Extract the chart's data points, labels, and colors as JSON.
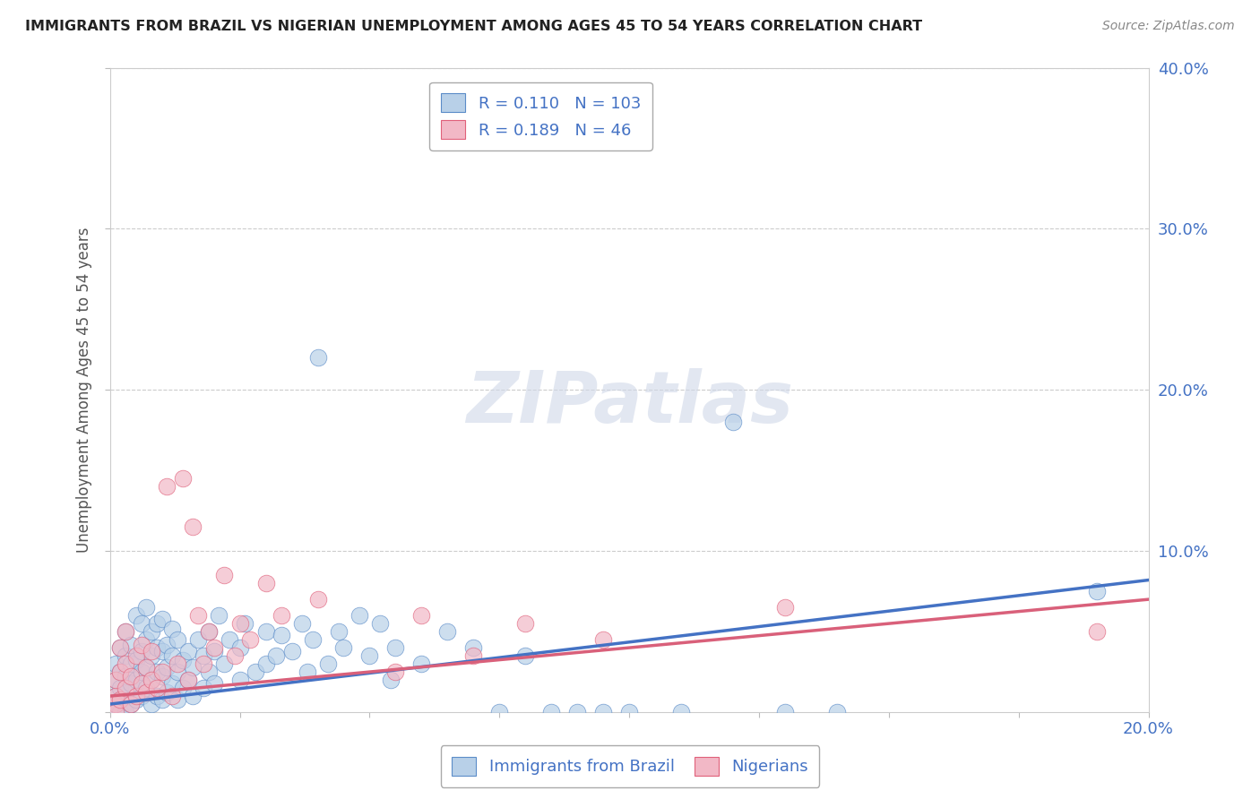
{
  "title": "IMMIGRANTS FROM BRAZIL VS NIGERIAN UNEMPLOYMENT AMONG AGES 45 TO 54 YEARS CORRELATION CHART",
  "source": "Source: ZipAtlas.com",
  "ylabel": "Unemployment Among Ages 45 to 54 years",
  "xlim": [
    0.0,
    0.2
  ],
  "ylim": [
    0.0,
    0.4
  ],
  "xticks": [
    0.0,
    0.025,
    0.05,
    0.075,
    0.1,
    0.125,
    0.15,
    0.175,
    0.2
  ],
  "xticklabels": [
    "0.0%",
    "",
    "",
    "",
    "",
    "",
    "",
    "",
    "20.0%"
  ],
  "yticks": [
    0.0,
    0.1,
    0.2,
    0.3,
    0.4
  ],
  "yticklabels": [
    "",
    "10.0%",
    "20.0%",
    "30.0%",
    "40.0%"
  ],
  "brazil_color": "#b8d0e8",
  "nigeria_color": "#f2b8c6",
  "brazil_edge_color": "#5b8cc8",
  "nigeria_edge_color": "#e0607a",
  "brazil_line_color": "#4472c4",
  "nigeria_line_color": "#d9607a",
  "brazil_R": 0.11,
  "brazil_N": 103,
  "nigeria_R": 0.189,
  "nigeria_N": 46,
  "legend_label_brazil": "Immigrants from Brazil",
  "legend_label_nigeria": "Nigerians",
  "watermark": "ZIPatlas",
  "background_color": "#ffffff",
  "grid_color": "#cccccc",
  "title_color": "#222222",
  "axis_label_color": "#555555",
  "tick_color": "#4472c4",
  "brazil_points": [
    [
      0.001,
      0.005
    ],
    [
      0.001,
      0.01
    ],
    [
      0.001,
      0.02
    ],
    [
      0.001,
      0.03
    ],
    [
      0.001,
      0.0
    ],
    [
      0.001,
      0.003
    ],
    [
      0.002,
      0.008
    ],
    [
      0.002,
      0.015
    ],
    [
      0.002,
      0.025
    ],
    [
      0.002,
      0.04
    ],
    [
      0.002,
      0.0
    ],
    [
      0.003,
      0.012
    ],
    [
      0.003,
      0.022
    ],
    [
      0.003,
      0.035
    ],
    [
      0.003,
      0.0
    ],
    [
      0.003,
      0.05
    ],
    [
      0.004,
      0.005
    ],
    [
      0.004,
      0.018
    ],
    [
      0.004,
      0.03
    ],
    [
      0.004,
      0.042
    ],
    [
      0.005,
      0.008
    ],
    [
      0.005,
      0.02
    ],
    [
      0.005,
      0.032
    ],
    [
      0.005,
      0.06
    ],
    [
      0.006,
      0.01
    ],
    [
      0.006,
      0.025
    ],
    [
      0.006,
      0.038
    ],
    [
      0.006,
      0.055
    ],
    [
      0.007,
      0.015
    ],
    [
      0.007,
      0.028
    ],
    [
      0.007,
      0.045
    ],
    [
      0.007,
      0.065
    ],
    [
      0.008,
      0.005
    ],
    [
      0.008,
      0.02
    ],
    [
      0.008,
      0.035
    ],
    [
      0.008,
      0.05
    ],
    [
      0.009,
      0.01
    ],
    [
      0.009,
      0.025
    ],
    [
      0.009,
      0.04
    ],
    [
      0.009,
      0.055
    ],
    [
      0.01,
      0.008
    ],
    [
      0.01,
      0.022
    ],
    [
      0.01,
      0.038
    ],
    [
      0.01,
      0.058
    ],
    [
      0.011,
      0.012
    ],
    [
      0.011,
      0.028
    ],
    [
      0.011,
      0.042
    ],
    [
      0.012,
      0.018
    ],
    [
      0.012,
      0.035
    ],
    [
      0.012,
      0.052
    ],
    [
      0.013,
      0.008
    ],
    [
      0.013,
      0.025
    ],
    [
      0.013,
      0.045
    ],
    [
      0.014,
      0.015
    ],
    [
      0.014,
      0.032
    ],
    [
      0.015,
      0.02
    ],
    [
      0.015,
      0.038
    ],
    [
      0.016,
      0.01
    ],
    [
      0.016,
      0.028
    ],
    [
      0.017,
      0.045
    ],
    [
      0.018,
      0.015
    ],
    [
      0.018,
      0.035
    ],
    [
      0.019,
      0.025
    ],
    [
      0.019,
      0.05
    ],
    [
      0.02,
      0.018
    ],
    [
      0.02,
      0.038
    ],
    [
      0.021,
      0.06
    ],
    [
      0.022,
      0.03
    ],
    [
      0.023,
      0.045
    ],
    [
      0.025,
      0.02
    ],
    [
      0.025,
      0.04
    ],
    [
      0.026,
      0.055
    ],
    [
      0.028,
      0.025
    ],
    [
      0.03,
      0.03
    ],
    [
      0.03,
      0.05
    ],
    [
      0.032,
      0.035
    ],
    [
      0.033,
      0.048
    ],
    [
      0.035,
      0.038
    ],
    [
      0.037,
      0.055
    ],
    [
      0.038,
      0.025
    ],
    [
      0.039,
      0.045
    ],
    [
      0.04,
      0.22
    ],
    [
      0.042,
      0.03
    ],
    [
      0.044,
      0.05
    ],
    [
      0.045,
      0.04
    ],
    [
      0.048,
      0.06
    ],
    [
      0.05,
      0.035
    ],
    [
      0.052,
      0.055
    ],
    [
      0.054,
      0.02
    ],
    [
      0.055,
      0.04
    ],
    [
      0.06,
      0.03
    ],
    [
      0.065,
      0.05
    ],
    [
      0.07,
      0.04
    ],
    [
      0.075,
      0.0
    ],
    [
      0.08,
      0.035
    ],
    [
      0.085,
      0.0
    ],
    [
      0.09,
      0.0
    ],
    [
      0.095,
      0.0
    ],
    [
      0.1,
      0.0
    ],
    [
      0.11,
      0.0
    ],
    [
      0.12,
      0.18
    ],
    [
      0.13,
      0.0
    ],
    [
      0.14,
      0.0
    ],
    [
      0.19,
      0.075
    ]
  ],
  "nigeria_points": [
    [
      0.001,
      0.005
    ],
    [
      0.001,
      0.01
    ],
    [
      0.001,
      0.02
    ],
    [
      0.001,
      0.0
    ],
    [
      0.002,
      0.008
    ],
    [
      0.002,
      0.025
    ],
    [
      0.002,
      0.04
    ],
    [
      0.003,
      0.015
    ],
    [
      0.003,
      0.03
    ],
    [
      0.003,
      0.05
    ],
    [
      0.004,
      0.005
    ],
    [
      0.004,
      0.022
    ],
    [
      0.005,
      0.01
    ],
    [
      0.005,
      0.035
    ],
    [
      0.006,
      0.018
    ],
    [
      0.006,
      0.042
    ],
    [
      0.007,
      0.012
    ],
    [
      0.007,
      0.028
    ],
    [
      0.008,
      0.02
    ],
    [
      0.008,
      0.038
    ],
    [
      0.009,
      0.015
    ],
    [
      0.01,
      0.025
    ],
    [
      0.011,
      0.14
    ],
    [
      0.012,
      0.01
    ],
    [
      0.013,
      0.03
    ],
    [
      0.014,
      0.145
    ],
    [
      0.015,
      0.02
    ],
    [
      0.016,
      0.115
    ],
    [
      0.017,
      0.06
    ],
    [
      0.018,
      0.03
    ],
    [
      0.019,
      0.05
    ],
    [
      0.02,
      0.04
    ],
    [
      0.022,
      0.085
    ],
    [
      0.024,
      0.035
    ],
    [
      0.025,
      0.055
    ],
    [
      0.027,
      0.045
    ],
    [
      0.03,
      0.08
    ],
    [
      0.033,
      0.06
    ],
    [
      0.04,
      0.07
    ],
    [
      0.055,
      0.025
    ],
    [
      0.06,
      0.06
    ],
    [
      0.07,
      0.035
    ],
    [
      0.08,
      0.055
    ],
    [
      0.095,
      0.045
    ],
    [
      0.13,
      0.065
    ],
    [
      0.19,
      0.05
    ]
  ]
}
